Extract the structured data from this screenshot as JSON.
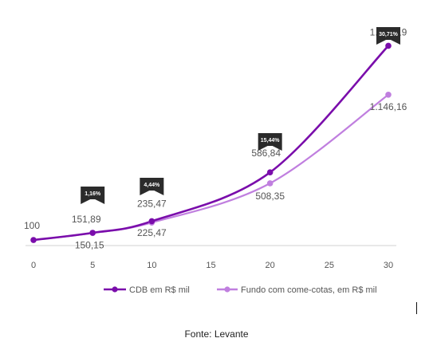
{
  "chart_data": {
    "type": "line",
    "x": [
      0,
      5,
      10,
      20,
      30
    ],
    "series": [
      {
        "name": "CDB em R$ mil",
        "color": "#7a0dab",
        "values": [
          100,
          151.89,
          235.47,
          586.84,
          1498.19
        ],
        "labels": [
          "100",
          "151,89",
          "235,47",
          "586,84",
          "1.498,19"
        ]
      },
      {
        "name": "Fundo com come-cotas, em R$ mil",
        "color": "#c07fdf",
        "values": [
          100,
          150.15,
          225.47,
          508.35,
          1146.16
        ],
        "labels": [
          "",
          "150,15",
          "225,47",
          "508,35",
          "1.146,16"
        ]
      }
    ],
    "xticks": [
      "0",
      "5",
      "10",
      "15",
      "20",
      "25",
      "30"
    ],
    "xlim": [
      0,
      30
    ],
    "ylim": [
      60,
      1650
    ],
    "grid": false,
    "legend": "bottom",
    "annotations": [
      {
        "x": 5,
        "text": "1,16%"
      },
      {
        "x": 10,
        "text": "4,44%"
      },
      {
        "x": 20,
        "text": "15,44%"
      },
      {
        "x": 30,
        "text": "30,71%"
      }
    ]
  },
  "source": "Fonte: Levante"
}
